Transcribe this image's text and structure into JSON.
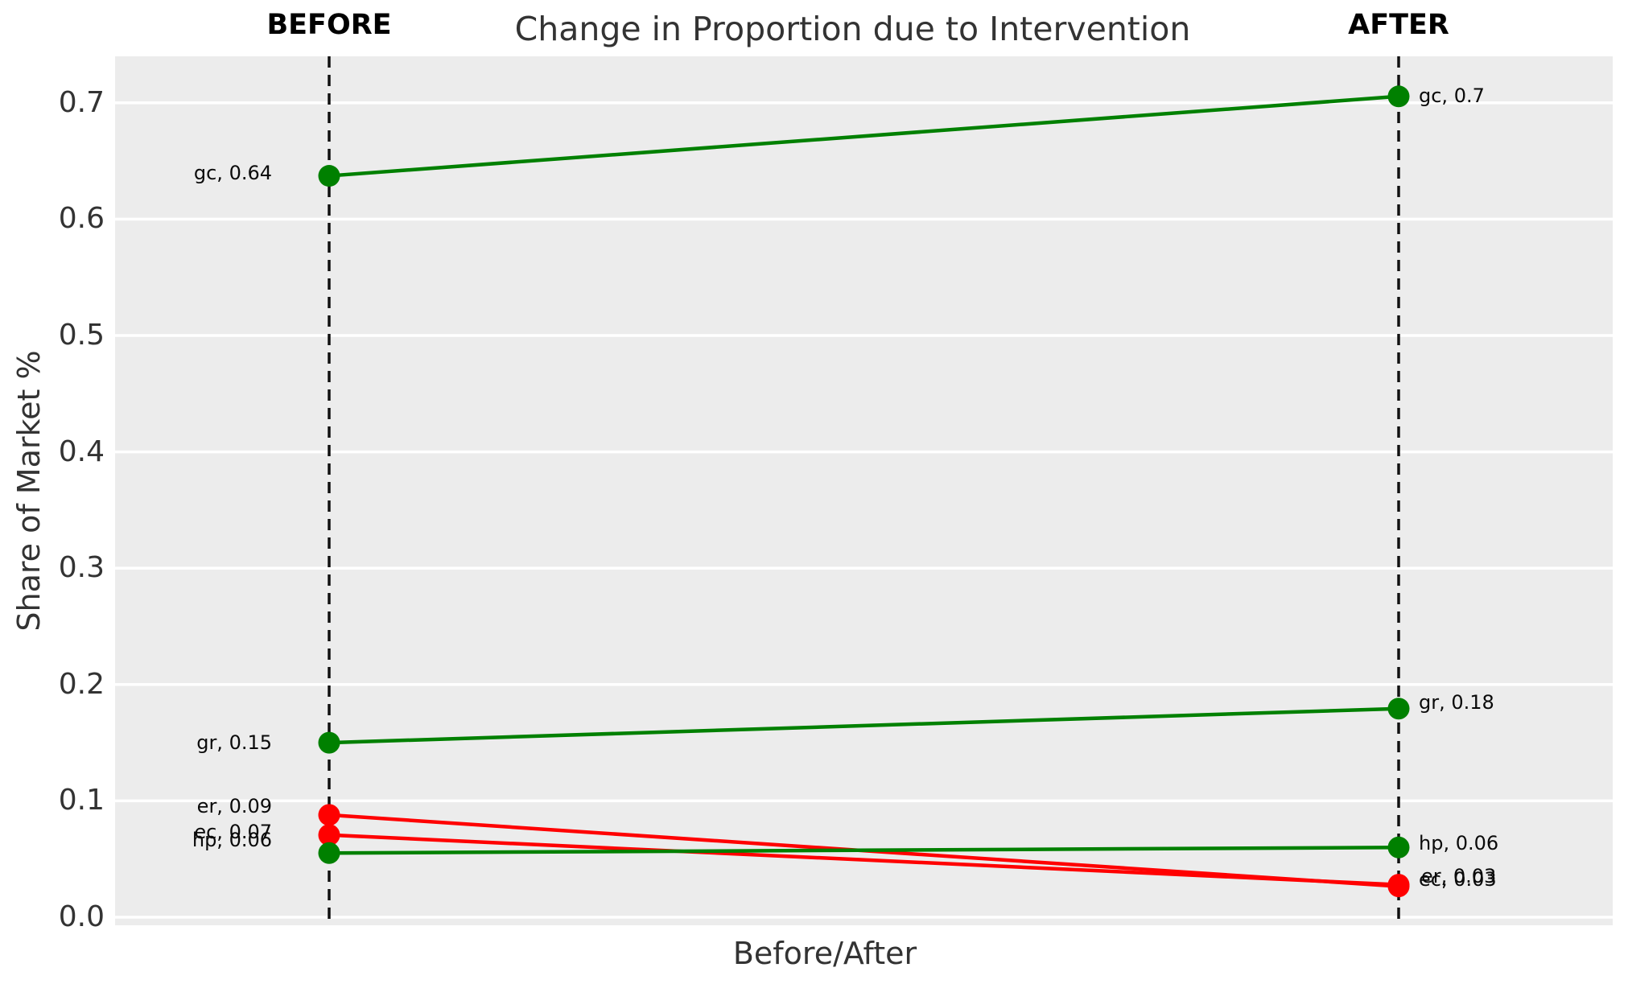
{
  "chart_data": {
    "type": "line",
    "subtype": "slopegraph",
    "title": "Change in Proportion due to Intervention",
    "xlabel": "Before/After",
    "ylabel": "Share of Market %",
    "x_categories": [
      "BEFORE",
      "AFTER"
    ],
    "yticks": [
      0.0,
      0.1,
      0.2,
      0.3,
      0.4,
      0.5,
      0.6,
      0.7
    ],
    "ylim": [
      0.0,
      0.74
    ],
    "grid": true,
    "legend": false,
    "series": [
      {
        "name": "gc",
        "color": "#008000",
        "values": [
          0.64,
          0.7
        ],
        "point_labels": [
          "gc, 0.64",
          "gc, 0.7"
        ]
      },
      {
        "name": "gr",
        "color": "#008000",
        "values": [
          0.15,
          0.18
        ],
        "point_labels": [
          "gr, 0.15",
          "gr, 0.18"
        ]
      },
      {
        "name": "er",
        "color": "#ff0000",
        "values": [
          0.09,
          0.03
        ],
        "point_labels": [
          "er, 0.09",
          "er, 0.03"
        ]
      },
      {
        "name": "ec",
        "color": "#ff0000",
        "values": [
          0.07,
          0.03
        ],
        "point_labels": [
          "ec, 0.07",
          "ec, 0.03"
        ]
      },
      {
        "name": "hp",
        "color": "#008000",
        "values": [
          0.06,
          0.06
        ],
        "point_labels": [
          "hp, 0.06",
          "hp, 0.06"
        ]
      }
    ]
  },
  "styles": {
    "increase_color": "#008000",
    "decrease_color": "#ff0000",
    "plot_background": "#ececec",
    "gridline_color": "#ffffff",
    "guide_line_color": "#111111",
    "text_color": "#333333",
    "annotation_color": "#0a0a0a"
  }
}
